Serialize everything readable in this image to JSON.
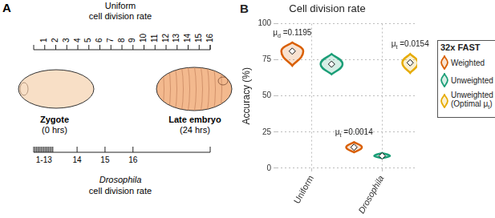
{
  "panel_a": {
    "label": "A",
    "time_range_hrs": [
      0,
      24
    ],
    "top_scale": {
      "title": [
        "Uniform",
        "cell division rate"
      ],
      "divisions": [
        {
          "label": 1,
          "times_hrs": [
            1.5
          ]
        },
        {
          "label": 2,
          "times_hrs": [
            3
          ]
        },
        {
          "label": 3,
          "times_hrs": [
            4.5
          ]
        },
        {
          "label": 4,
          "times_hrs": [
            6
          ]
        },
        {
          "label": 5,
          "times_hrs": [
            7.5
          ]
        },
        {
          "label": 6,
          "times_hrs": [
            9
          ]
        },
        {
          "label": 7,
          "times_hrs": [
            10.5
          ]
        },
        {
          "label": 8,
          "times_hrs": [
            12
          ]
        },
        {
          "label": 9,
          "times_hrs": [
            13.5
          ]
        },
        {
          "label": 10,
          "times_hrs": [
            15
          ]
        },
        {
          "label": 11,
          "times_hrs": [
            16.5
          ]
        },
        {
          "label": 12,
          "times_hrs": [
            18
          ]
        },
        {
          "label": 13,
          "times_hrs": [
            19.5
          ]
        },
        {
          "label": 14,
          "times_hrs": [
            21
          ]
        },
        {
          "label": 15,
          "times_hrs": [
            22.5
          ]
        },
        {
          "label": 16,
          "times_hrs": [
            24
          ]
        }
      ]
    },
    "bottom_scale": {
      "title": [
        "Drosophila",
        "cell division rate"
      ],
      "divisions": [
        {
          "label": "1-13",
          "times_hrs": [
            0.2,
            0.4,
            0.6,
            0.8,
            1.0,
            1.2,
            1.4,
            1.6,
            1.8,
            2.0,
            2.2,
            2.4,
            2.6
          ]
        },
        {
          "label": 14,
          "times_hrs": [
            5.9
          ]
        },
        {
          "label": 15,
          "times_hrs": [
            9.7
          ]
        },
        {
          "label": 16,
          "times_hrs": [
            13.5
          ]
        }
      ]
    },
    "stages": [
      {
        "name": "Zygote",
        "time": "(0 hrs)"
      },
      {
        "name": "Late embryo",
        "time": "(24 hrs)"
      }
    ]
  },
  "chart_data": {
    "type": "violin",
    "panel_label": "B",
    "title": "Cell division rate",
    "y_label": "Accuracy (%)",
    "categories": [
      "Uniform",
      "Drosophila"
    ],
    "ylim": [
      0,
      100
    ],
    "yticks": [
      0,
      25,
      50,
      75,
      100
    ],
    "grid": true,
    "legend": "right",
    "legend_title": "32x FAST",
    "series": [
      {
        "name": "Weighted",
        "color": "#d95f02",
        "values": [
          81,
          14.5
        ],
        "min": [
          71,
          11
        ],
        "max": [
          87,
          18
        ]
      },
      {
        "name": "Unweighted",
        "color": "#1b9e77",
        "values": [
          72,
          8.5
        ],
        "min": [
          65,
          7
        ],
        "max": [
          79,
          10.5
        ]
      },
      {
        "name": "Unweighted (Optimal μt)",
        "color": "#e6ab02",
        "values": [
          null,
          73
        ],
        "min": [
          null,
          66
        ],
        "max": [
          null,
          79
        ]
      }
    ],
    "annotations": [
      {
        "category": "Uniform",
        "series": "Weighted",
        "text": "μd =0.1195"
      },
      {
        "category": "Drosophila",
        "series": "Weighted",
        "text": "μt =0.0014"
      },
      {
        "category": "Drosophila",
        "series": "Unweighted (Optimal μt)",
        "text": "μt =0.0154"
      }
    ]
  }
}
